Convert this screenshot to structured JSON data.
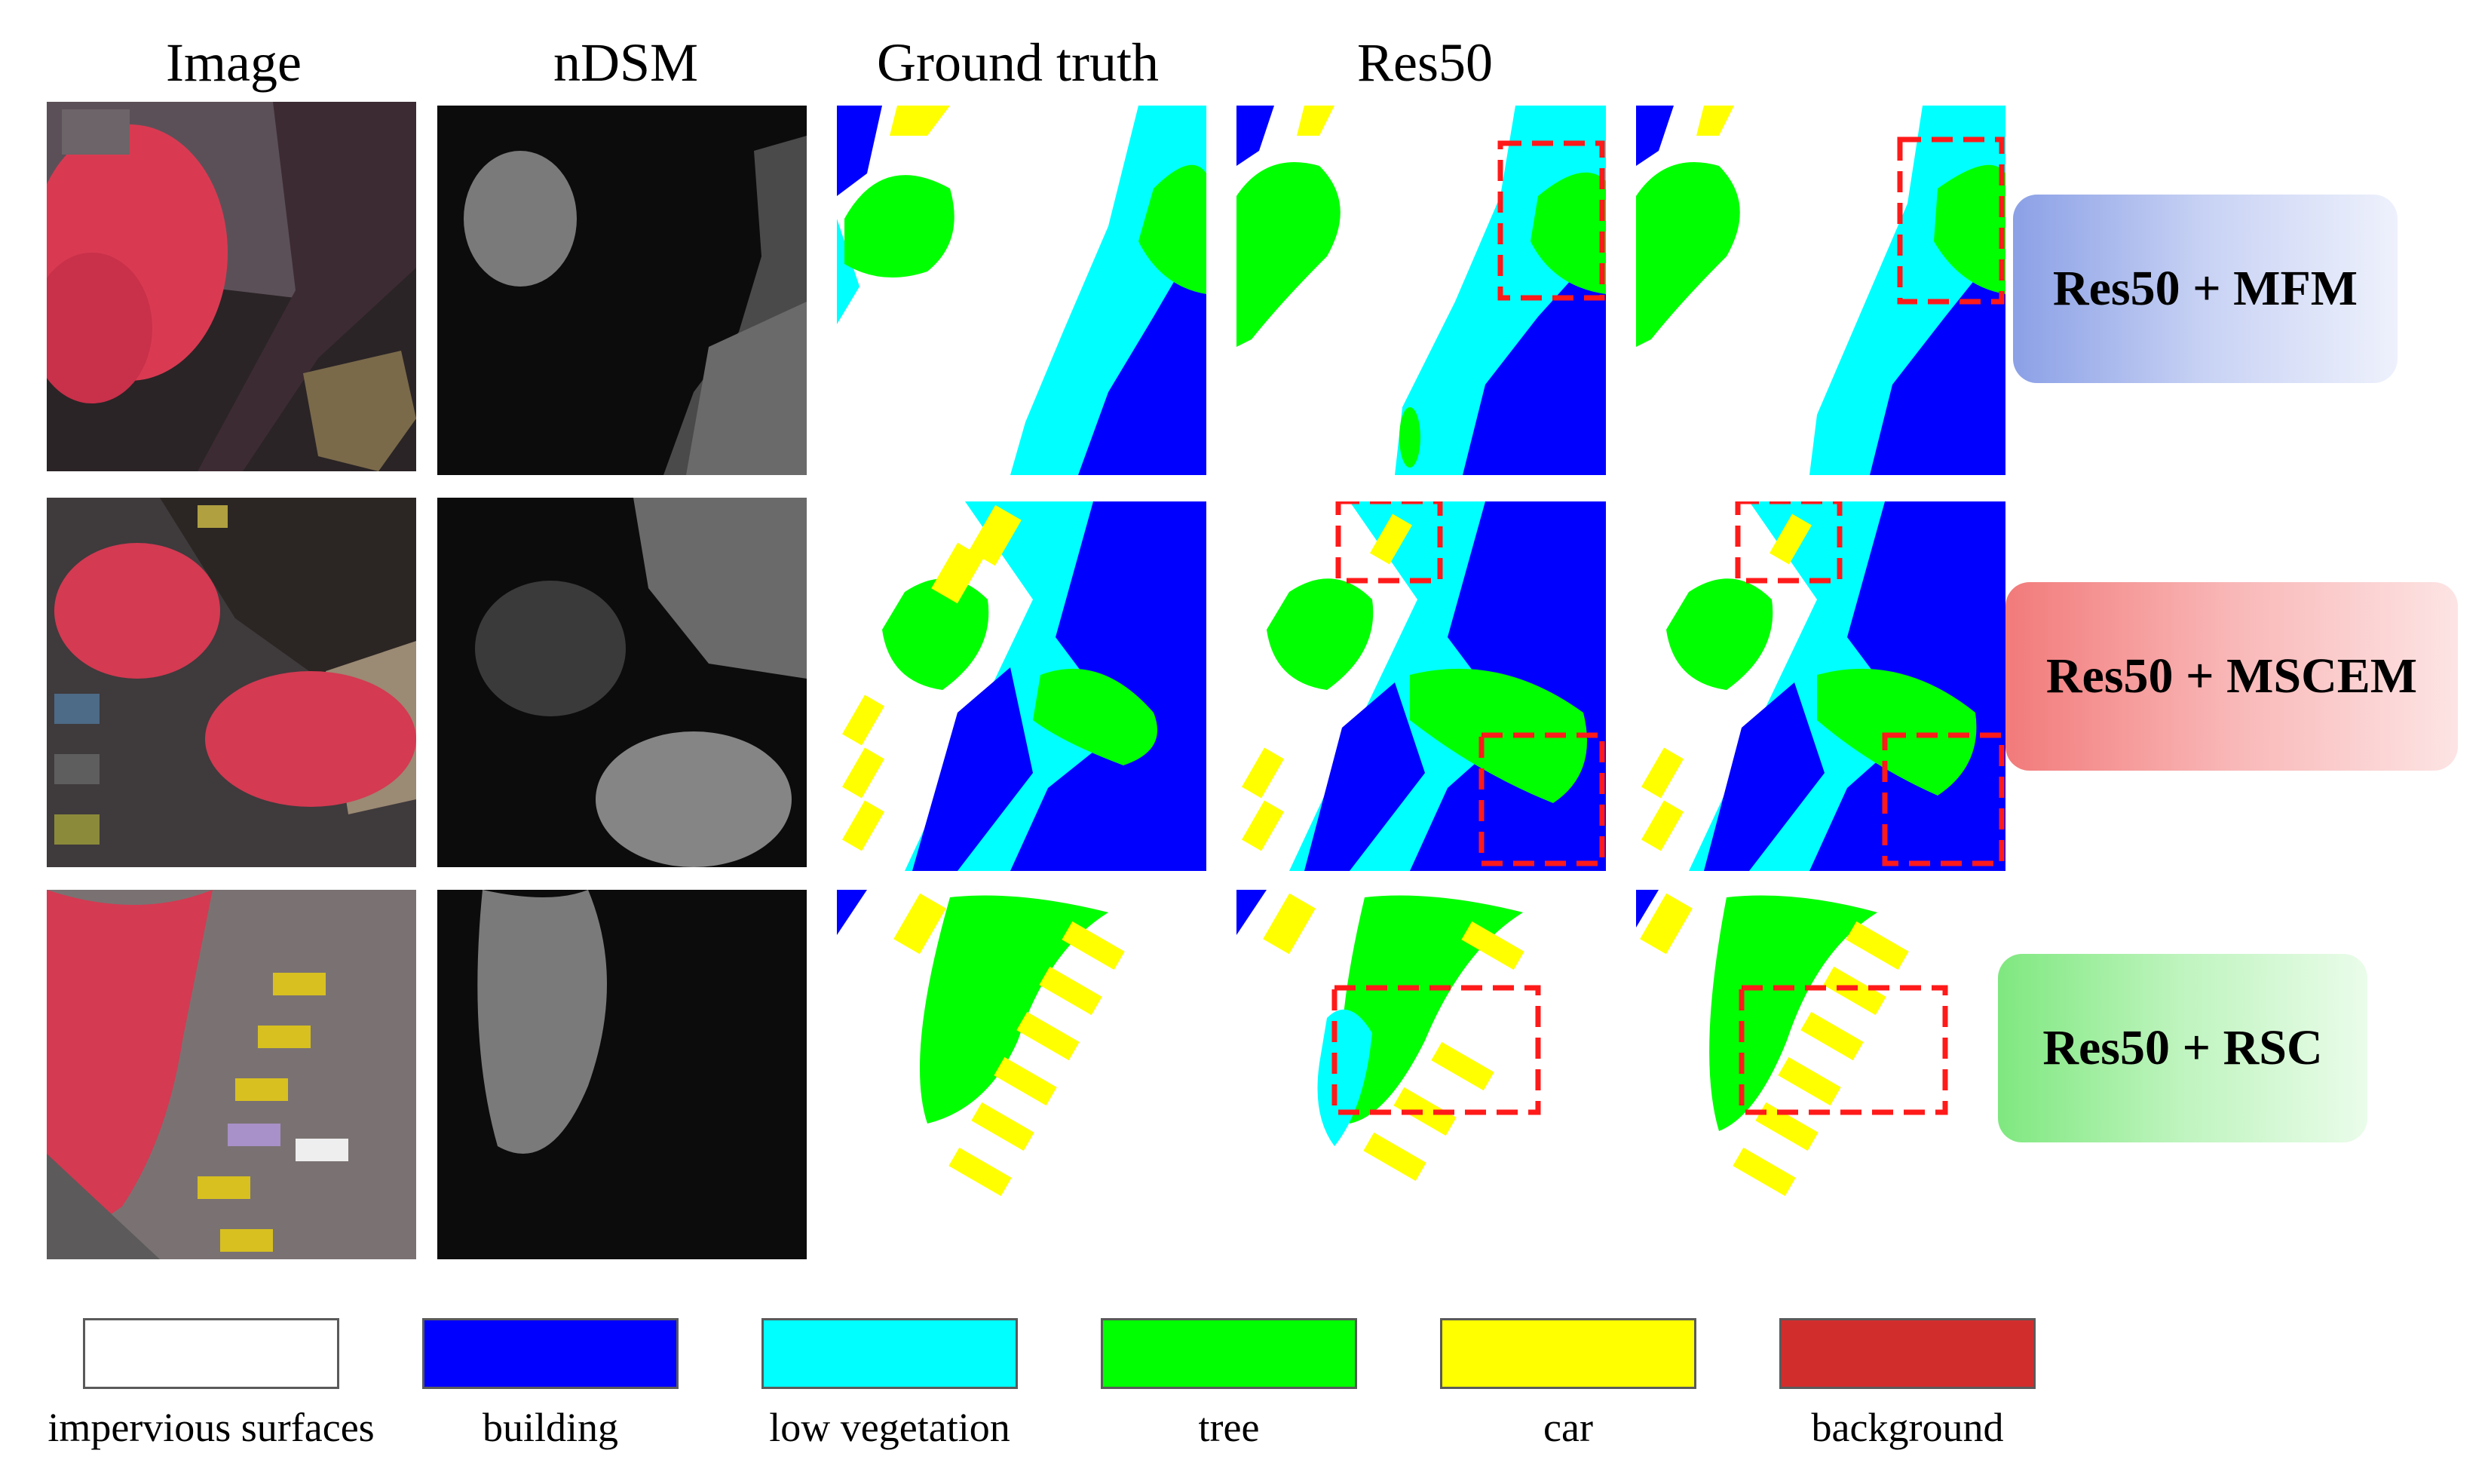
{
  "headers": {
    "image": "Image",
    "ndsm": "nDSM",
    "ground_truth": "Ground truth",
    "res50": "Res50"
  },
  "row_labels": [
    "Res50 + MFM",
    "Res50 + MSCEM",
    "Res50 + RSC"
  ],
  "legend": [
    {
      "label": "impervious surfaces",
      "color": "#ffffff"
    },
    {
      "label": "building",
      "color": "#0000ff"
    },
    {
      "label": "low vegetation",
      "color": "#00ffff"
    },
    {
      "label": "tree",
      "color": "#00ff00"
    },
    {
      "label": "car",
      "color": "#ffff00"
    },
    {
      "label": "background",
      "color": "#d22d2d"
    }
  ]
}
